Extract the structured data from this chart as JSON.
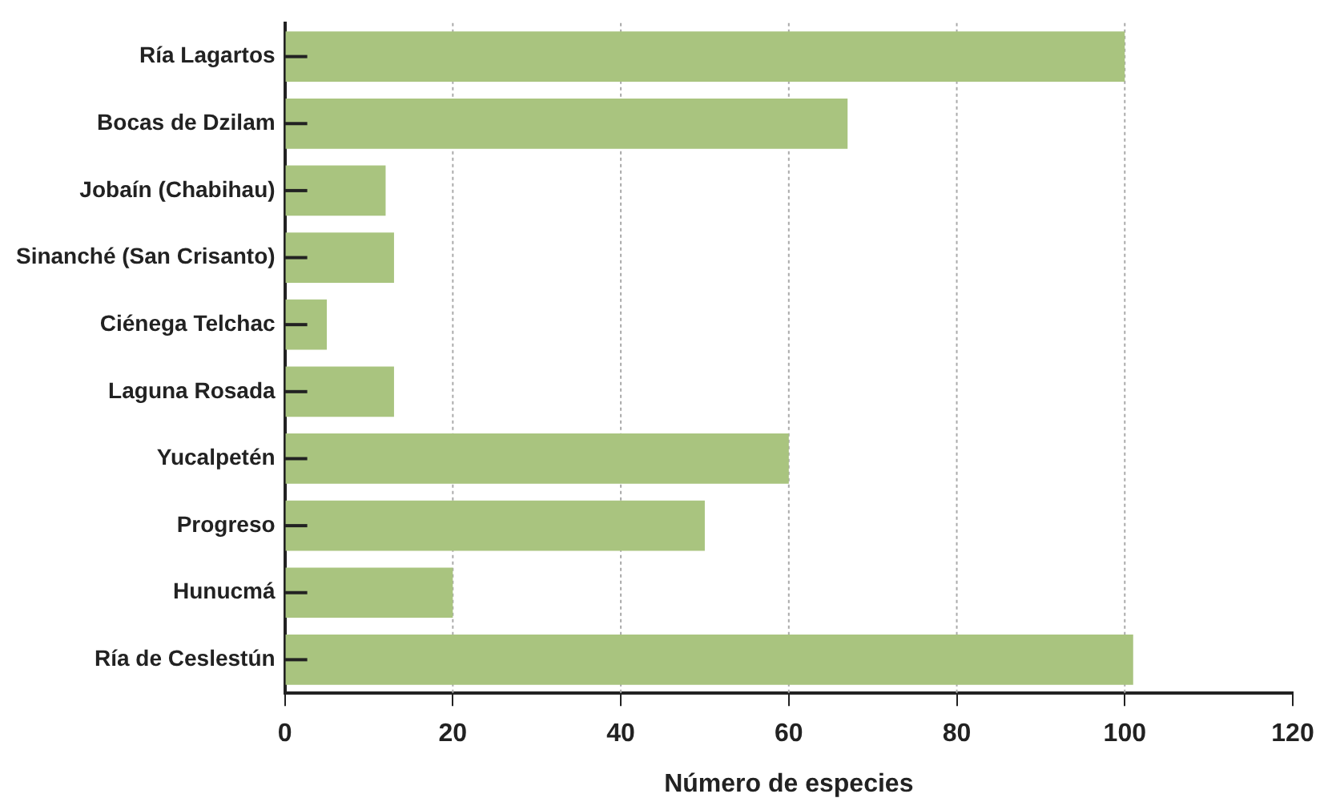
{
  "chart_data": {
    "type": "bar",
    "orientation": "horizontal",
    "xlabel": "Número de especies",
    "categories": [
      "Ría Lagartos",
      "Bocas de Dzilam",
      "Jobaín (Chabihau)",
      "Sinanché (San Crisanto)",
      "Ciénega Telchac",
      "Laguna Rosada",
      "Yucalpetén",
      "Progreso",
      "Hunucmá",
      "Ría de Ceslestún"
    ],
    "values": [
      100,
      67,
      12,
      13,
      5,
      13,
      60,
      50,
      20,
      101
    ],
    "color": "#a9c47f",
    "xlim": [
      0,
      120
    ],
    "xticks": [
      0,
      20,
      40,
      60,
      80,
      100,
      120
    ],
    "grid": "x",
    "legend": false
  }
}
